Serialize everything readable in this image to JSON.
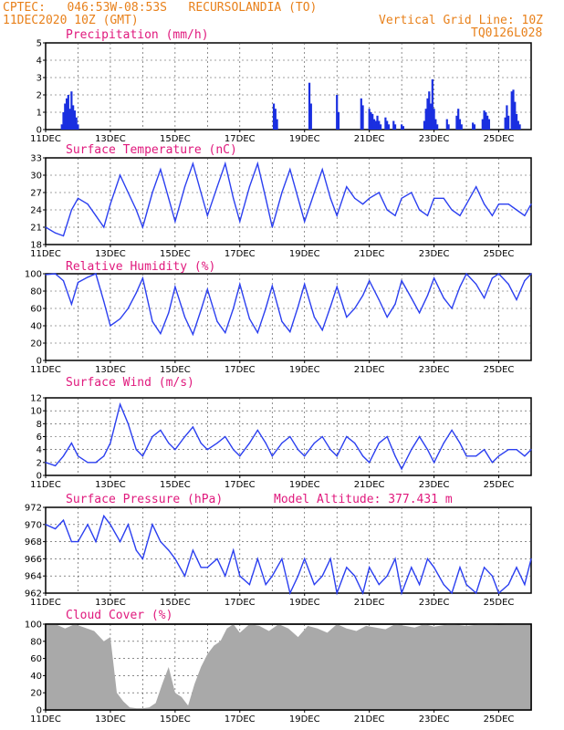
{
  "header": {
    "line1": "CPTEC:   046:53W-08:53S   RECURSOLANDIA (TO)",
    "line2": "11DEC2020 10Z (GMT)",
    "grid_note": "Vertical Grid Line: 10Z",
    "code": "TQ0126L028",
    "model_altitude": "Model Altitude: 377.431 m"
  },
  "colors": {
    "header": "#e8801a",
    "title": "#e0197d",
    "line": "#2b3ff0",
    "bar": "#1a2fe0",
    "cloud": "#a9a9a9"
  },
  "x_tick_labels": [
    "11DEC",
    "13DEC",
    "15DEC",
    "17DEC",
    "19DEC",
    "21DEC",
    "23DEC",
    "25DEC"
  ],
  "chart_data": [
    {
      "type": "bar",
      "title": "Precipitation (mm/h)",
      "ylim": [
        0,
        5
      ],
      "yticks": [
        "0",
        "1",
        "2",
        "3",
        "4",
        "5"
      ],
      "x_unit": "days since 11DEC2020 10Z",
      "x": [
        0.5,
        0.55,
        0.6,
        0.65,
        0.7,
        0.75,
        0.8,
        0.85,
        0.9,
        0.95,
        1.0,
        7.05,
        7.1,
        7.15,
        8.15,
        8.2,
        9.0,
        9.05,
        9.75,
        9.8,
        10.0,
        10.05,
        10.1,
        10.15,
        10.2,
        10.25,
        10.3,
        10.35,
        10.5,
        10.55,
        10.6,
        10.75,
        10.8,
        11.0,
        11.05,
        11.7,
        11.75,
        11.8,
        11.85,
        11.9,
        11.95,
        12.0,
        12.05,
        12.1,
        12.4,
        12.45,
        12.7,
        12.75,
        12.8,
        12.85,
        13.2,
        13.25,
        13.5,
        13.55,
        13.6,
        13.65,
        13.7,
        14.2,
        14.25,
        14.3,
        14.4,
        14.45,
        14.5,
        14.55,
        14.6,
        14.65
      ],
      "values": [
        0.3,
        1.0,
        1.5,
        1.8,
        2.0,
        1.2,
        2.2,
        1.4,
        1.1,
        0.7,
        0.3,
        1.5,
        1.2,
        0.6,
        2.7,
        1.5,
        2.0,
        1.0,
        1.8,
        1.4,
        1.2,
        1.0,
        0.9,
        0.6,
        0.5,
        0.8,
        0.5,
        0.3,
        0.7,
        0.5,
        0.3,
        0.5,
        0.3,
        0.3,
        0.2,
        0.5,
        1.2,
        1.8,
        2.2,
        1.5,
        2.9,
        1.2,
        0.6,
        0.3,
        0.6,
        0.3,
        0.8,
        1.2,
        0.6,
        0.3,
        0.4,
        0.3,
        0.6,
        1.1,
        1.0,
        0.8,
        0.6,
        0.7,
        1.4,
        0.8,
        2.2,
        2.3,
        1.6,
        0.9,
        0.5,
        0.3
      ]
    },
    {
      "type": "line",
      "title": "Surface Temperature (nC)",
      "ylim": [
        18,
        33
      ],
      "yticks": [
        "18",
        "21",
        "24",
        "27",
        "30",
        "33"
      ],
      "x": [
        0,
        0.3,
        0.55,
        0.8,
        1.0,
        1.3,
        1.55,
        1.8,
        2.0,
        2.3,
        2.55,
        2.8,
        3.0,
        3.3,
        3.55,
        3.8,
        4.0,
        4.3,
        4.55,
        4.8,
        5.0,
        5.3,
        5.55,
        5.8,
        6.0,
        6.3,
        6.55,
        6.8,
        7.0,
        7.3,
        7.55,
        7.8,
        8.0,
        8.3,
        8.55,
        8.8,
        9.0,
        9.3,
        9.55,
        9.8,
        10.0,
        10.3,
        10.55,
        10.8,
        11.0,
        11.3,
        11.55,
        11.8,
        12.0,
        12.3,
        12.55,
        12.8,
        13.0,
        13.3,
        13.55,
        13.8,
        14.0,
        14.3,
        14.55,
        14.8,
        15.0
      ],
      "values": [
        21,
        20,
        19.5,
        24,
        26,
        25,
        23,
        21,
        25,
        30,
        27,
        24,
        21,
        27,
        31,
        26,
        22,
        28,
        32,
        27,
        23,
        28,
        32,
        26,
        22,
        28,
        32,
        26,
        21,
        27,
        31,
        26,
        22,
        27,
        31,
        26,
        23,
        28,
        26,
        25,
        26,
        27,
        24,
        23,
        26,
        27,
        24,
        23,
        26,
        26,
        24,
        23,
        25,
        28,
        25,
        23,
        25,
        25,
        24,
        23,
        25
      ]
    },
    {
      "type": "line",
      "title": "Relative Humidity (%)",
      "ylim": [
        0,
        100
      ],
      "yticks": [
        "0",
        "20",
        "40",
        "60",
        "80",
        "100"
      ],
      "x": [
        0,
        0.3,
        0.55,
        0.8,
        1.0,
        1.3,
        1.55,
        1.8,
        2.0,
        2.3,
        2.55,
        2.8,
        3.0,
        3.3,
        3.55,
        3.8,
        4.0,
        4.3,
        4.55,
        4.8,
        5.0,
        5.3,
        5.55,
        5.8,
        6.0,
        6.3,
        6.55,
        6.8,
        7.0,
        7.3,
        7.55,
        7.8,
        8.0,
        8.3,
        8.55,
        8.8,
        9.0,
        9.3,
        9.55,
        9.8,
        10.0,
        10.3,
        10.55,
        10.8,
        11.0,
        11.3,
        11.55,
        11.8,
        12.0,
        12.3,
        12.55,
        12.8,
        13.0,
        13.3,
        13.55,
        13.8,
        14.0,
        14.3,
        14.55,
        14.8,
        15.0
      ],
      "values": [
        99,
        100,
        92,
        65,
        90,
        96,
        100,
        68,
        40,
        48,
        60,
        78,
        95,
        45,
        31,
        55,
        85,
        50,
        30,
        58,
        82,
        45,
        32,
        60,
        88,
        48,
        32,
        60,
        86,
        45,
        33,
        62,
        88,
        50,
        35,
        62,
        85,
        50,
        60,
        75,
        92,
        70,
        50,
        65,
        92,
        72,
        55,
        75,
        95,
        72,
        60,
        85,
        100,
        88,
        72,
        95,
        100,
        88,
        70,
        92,
        100
      ]
    },
    {
      "type": "line",
      "title": "Surface Wind (m/s)",
      "ylim": [
        0,
        12
      ],
      "yticks": [
        "0",
        "2",
        "4",
        "6",
        "8",
        "10",
        "12"
      ],
      "x": [
        0,
        0.3,
        0.55,
        0.8,
        1.0,
        1.3,
        1.55,
        1.8,
        2.0,
        2.3,
        2.55,
        2.8,
        3.0,
        3.3,
        3.55,
        3.8,
        4.0,
        4.3,
        4.55,
        4.8,
        5.0,
        5.3,
        5.55,
        5.8,
        6.0,
        6.3,
        6.55,
        6.8,
        7.0,
        7.3,
        7.55,
        7.8,
        8.0,
        8.3,
        8.55,
        8.8,
        9.0,
        9.3,
        9.55,
        9.8,
        10.0,
        10.3,
        10.55,
        10.8,
        11.0,
        11.3,
        11.55,
        11.8,
        12.0,
        12.3,
        12.55,
        12.8,
        13.0,
        13.3,
        13.55,
        13.8,
        14.0,
        14.3,
        14.55,
        14.8,
        15.0
      ],
      "values": [
        2,
        1.5,
        3,
        5,
        3,
        2,
        2,
        3,
        5,
        11,
        8,
        4,
        3,
        6,
        7,
        5,
        4,
        6,
        7.5,
        5,
        4,
        5,
        6,
        4,
        3,
        5,
        7,
        5,
        3,
        5,
        6,
        4,
        3,
        5,
        6,
        4,
        3,
        6,
        5,
        3,
        2,
        5,
        6,
        3,
        1,
        4,
        6,
        4,
        2,
        5,
        7,
        5,
        3,
        3,
        4,
        2,
        3,
        4,
        4,
        3,
        4
      ]
    },
    {
      "type": "line",
      "title": "Surface Pressure (hPa)",
      "ylim": [
        962,
        972
      ],
      "yticks": [
        "962",
        "964",
        "966",
        "968",
        "970",
        "972"
      ],
      "x": [
        0,
        0.3,
        0.55,
        0.8,
        1.0,
        1.3,
        1.55,
        1.8,
        2.0,
        2.3,
        2.55,
        2.8,
        3.0,
        3.3,
        3.55,
        3.8,
        4.0,
        4.3,
        4.55,
        4.8,
        5.0,
        5.3,
        5.55,
        5.8,
        6.0,
        6.3,
        6.55,
        6.8,
        7.0,
        7.3,
        7.55,
        7.8,
        8.0,
        8.3,
        8.55,
        8.8,
        9.0,
        9.3,
        9.55,
        9.8,
        10.0,
        10.3,
        10.55,
        10.8,
        11.0,
        11.3,
        11.55,
        11.8,
        12.0,
        12.3,
        12.55,
        12.8,
        13.0,
        13.3,
        13.55,
        13.8,
        14.0,
        14.3,
        14.55,
        14.8,
        15.0
      ],
      "values": [
        970,
        969.5,
        970.5,
        968,
        968,
        970,
        968,
        971,
        970,
        968,
        970,
        967,
        966,
        970,
        968,
        967,
        966,
        964,
        967,
        965,
        965,
        966,
        964,
        967,
        964,
        963,
        966,
        963,
        964,
        966,
        962,
        964,
        966,
        963,
        964,
        966,
        962,
        965,
        964,
        962,
        965,
        963,
        964,
        966,
        962,
        965,
        963,
        966,
        965,
        963,
        962,
        965,
        963,
        962,
        965,
        964,
        962,
        963,
        965,
        963,
        966
      ]
    },
    {
      "type": "area",
      "title": "Cloud Cover (%)",
      "ylim": [
        0,
        100
      ],
      "yticks": [
        "0",
        "20",
        "40",
        "60",
        "80",
        "100"
      ],
      "x": [
        0,
        0.3,
        0.6,
        0.9,
        1.2,
        1.5,
        1.8,
        2.0,
        2.2,
        2.4,
        2.6,
        2.8,
        3.0,
        3.2,
        3.4,
        3.6,
        3.8,
        4.0,
        4.2,
        4.4,
        4.6,
        4.8,
        5.0,
        5.2,
        5.4,
        5.6,
        5.8,
        6.0,
        6.3,
        6.6,
        6.9,
        7.2,
        7.5,
        7.8,
        8.1,
        8.4,
        8.7,
        9.0,
        9.3,
        9.6,
        9.9,
        10.2,
        10.5,
        10.8,
        11.1,
        11.4,
        11.7,
        12.0,
        12.5,
        13.0,
        13.5,
        14.0,
        14.5,
        15.0
      ],
      "values": [
        100,
        100,
        95,
        100,
        96,
        92,
        80,
        85,
        20,
        10,
        3,
        2,
        2,
        3,
        8,
        30,
        50,
        20,
        15,
        5,
        30,
        50,
        65,
        75,
        80,
        95,
        100,
        90,
        100,
        98,
        92,
        100,
        95,
        85,
        98,
        95,
        90,
        100,
        95,
        92,
        98,
        96,
        94,
        100,
        98,
        96,
        100,
        97,
        100,
        98,
        100,
        99,
        100,
        100
      ]
    }
  ]
}
